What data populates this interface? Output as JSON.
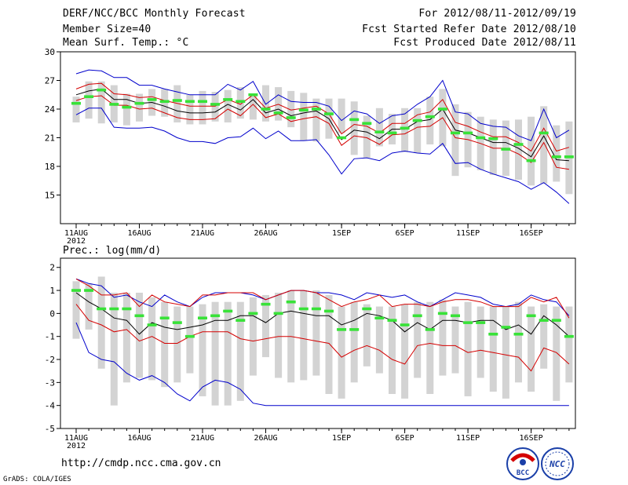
{
  "header": {
    "left": [
      "DERF/NCC/BCC Monthly Forecast",
      "Member Size=40",
      "Mean Surf. Temp.: °C"
    ],
    "right": [
      "For 2012/08/11-2012/09/19",
      "Fcst Started Refer Date 2012/08/10",
      "Fcst Produced Date 2012/08/11"
    ]
  },
  "colors": {
    "box": "#d3d3d3",
    "median": "#38e238",
    "ensemble_mean": "#000000",
    "std_band": "#d40000",
    "extreme": "#0000cc",
    "frame": "#000000"
  },
  "footer": {
    "url": "http://cmdp.ncc.cma.gov.cn",
    "grads": "GrADS: COLA/IGES",
    "logo_left": "BCC",
    "logo_right": "NCC"
  },
  "chart_data": [
    {
      "type": "boxplot",
      "title": "Mean Surf. Temp.: °C",
      "x_tick_labels": [
        "11AUG",
        "16AUG",
        "21AUG",
        "26AUG",
        "1SEP",
        "6SEP",
        "11SEP",
        "16SEP"
      ],
      "x_tick_days": [
        0,
        5,
        10,
        15,
        21,
        26,
        31,
        36
      ],
      "x_year_label": "2012",
      "ylim": [
        12,
        30
      ],
      "y_ticks": [
        15,
        18,
        21,
        24,
        27,
        30
      ],
      "series": [
        {
          "name": "box_high",
          "values": [
            25.3,
            26.9,
            26.9,
            26.5,
            25.6,
            25.6,
            26.1,
            26.1,
            26.5,
            25.5,
            25.9,
            25.8,
            26.0,
            26.3,
            25.5,
            26.5,
            26.3,
            25.9,
            25.7,
            25.1,
            25.1,
            25.1,
            24.8,
            23.3,
            24.1,
            23.5,
            24.1,
            24.1,
            25.3,
            26.1,
            24.5,
            23.7,
            23.2,
            22.9,
            22.8,
            22.9,
            23.2,
            24.3,
            22.3,
            22.7
          ]
        },
        {
          "name": "box_low",
          "values": [
            22.6,
            23.0,
            22.5,
            22.6,
            22.3,
            22.7,
            23.3,
            23.2,
            22.6,
            22.4,
            22.4,
            22.7,
            22.6,
            23.0,
            22.9,
            22.7,
            22.8,
            22.1,
            20.7,
            20.6,
            20.9,
            21.5,
            19.2,
            18.9,
            20.1,
            20.3,
            19.5,
            19.4,
            20.3,
            20.1,
            17.0,
            17.9,
            17.6,
            17.1,
            17.0,
            16.6,
            16.0,
            16.2,
            16.4,
            15.1
          ]
        },
        {
          "name": "median",
          "values": [
            24.6,
            25.3,
            26.0,
            24.5,
            24.2,
            24.6,
            25.0,
            24.8,
            24.9,
            24.8,
            24.8,
            24.5,
            25.0,
            24.8,
            25.5,
            24.0,
            23.6,
            23.1,
            23.9,
            24.0,
            23.5,
            21.0,
            22.9,
            22.5,
            21.6,
            21.5,
            22.0,
            22.8,
            23.2,
            24.0,
            21.5,
            21.5,
            21.0,
            20.9,
            19.8,
            20.3,
            18.6,
            21.5,
            19.0,
            19.0
          ]
        },
        {
          "name": "mean",
          "values": [
            25.5,
            25.9,
            26.1,
            25.0,
            25.0,
            24.6,
            24.7,
            24.3,
            23.8,
            23.6,
            23.6,
            23.7,
            24.5,
            23.9,
            25.0,
            23.6,
            24.0,
            23.3,
            23.6,
            23.8,
            23.0,
            20.8,
            21.8,
            21.6,
            20.9,
            21.9,
            21.9,
            22.7,
            22.9,
            24.0,
            21.8,
            21.5,
            21.0,
            20.5,
            20.5,
            19.9,
            19.0,
            21.2,
            18.7,
            18.6
          ]
        },
        {
          "name": "mean_plus_std",
          "values": [
            26.1,
            26.6,
            26.7,
            25.6,
            25.5,
            25.2,
            25.3,
            24.9,
            24.6,
            24.3,
            24.3,
            24.3,
            25.0,
            24.5,
            25.5,
            24.1,
            24.5,
            23.9,
            24.1,
            24.3,
            23.5,
            21.4,
            22.4,
            22.2,
            21.5,
            22.5,
            22.5,
            23.4,
            23.7,
            25.0,
            22.6,
            22.2,
            21.6,
            21.1,
            21.1,
            20.5,
            19.6,
            22.0,
            19.6,
            20.0
          ]
        },
        {
          "name": "mean_minus_std",
          "values": [
            24.9,
            25.3,
            25.4,
            24.4,
            24.4,
            24.0,
            24.1,
            23.6,
            23.1,
            22.9,
            22.9,
            23.0,
            24.0,
            23.3,
            24.5,
            23.1,
            23.5,
            22.7,
            23.0,
            23.2,
            22.5,
            20.2,
            21.2,
            21.0,
            20.3,
            21.3,
            21.4,
            22.1,
            22.2,
            23.1,
            21.0,
            20.8,
            20.4,
            19.9,
            19.9,
            19.3,
            18.4,
            20.5,
            17.9,
            17.7
          ]
        },
        {
          "name": "max",
          "values": [
            27.7,
            28.1,
            28.0,
            27.3,
            27.3,
            26.5,
            26.5,
            26.1,
            25.8,
            25.5,
            25.5,
            25.5,
            26.6,
            26.0,
            26.9,
            24.5,
            25.5,
            24.8,
            24.7,
            24.7,
            24.3,
            22.8,
            23.8,
            23.5,
            22.5,
            23.3,
            23.5,
            24.5,
            25.3,
            27.0,
            23.7,
            23.5,
            22.5,
            22.2,
            22.1,
            21.2,
            20.7,
            24.0,
            21.0,
            21.8
          ]
        },
        {
          "name": "min",
          "values": [
            23.4,
            24.1,
            24.1,
            22.1,
            22.0,
            22.0,
            22.1,
            21.7,
            21.0,
            20.6,
            20.6,
            20.4,
            21.0,
            21.1,
            22.0,
            20.9,
            21.7,
            20.7,
            20.7,
            20.8,
            19.2,
            17.2,
            18.8,
            18.9,
            18.6,
            19.4,
            19.6,
            19.4,
            19.3,
            20.4,
            18.3,
            18.4,
            17.7,
            17.2,
            16.8,
            16.4,
            15.6,
            16.3,
            15.3,
            14.1
          ]
        }
      ]
    },
    {
      "type": "boxplot",
      "title": "Prec.: log(mm/d)",
      "x_tick_labels": [
        "11AUG",
        "16AUG",
        "21AUG",
        "26AUG",
        "1SEP",
        "6SEP",
        "11SEP",
        "16SEP"
      ],
      "x_tick_days": [
        0,
        5,
        10,
        15,
        21,
        26,
        31,
        36
      ],
      "x_year_label": "2012",
      "ylim": [
        -5,
        2.4
      ],
      "y_ticks": [
        -5,
        -4,
        -3,
        -2,
        -1,
        0,
        1,
        2
      ],
      "series": [
        {
          "name": "box_high",
          "values": [
            1.4,
            1.3,
            1.6,
            0.9,
            0.9,
            0.9,
            0.7,
            0.5,
            0.3,
            0.3,
            0.4,
            0.5,
            0.5,
            0.5,
            0.7,
            0.8,
            0.9,
            1.0,
            1.0,
            1.0,
            0.8,
            0.3,
            0.5,
            0.4,
            0.3,
            0.3,
            0.4,
            0.5,
            0.5,
            0.6,
            0.3,
            0.5,
            0.3,
            0.3,
            0.3,
            0.5,
            0.3,
            0.4,
            0.3,
            0.3
          ]
        },
        {
          "name": "box_low",
          "values": [
            -1.1,
            -0.7,
            -2.4,
            -4.0,
            -3.0,
            -2.8,
            -2.9,
            -3.2,
            -3.0,
            -2.6,
            -3.6,
            -4.0,
            -4.0,
            -3.8,
            -2.7,
            -1.9,
            -2.8,
            -3.0,
            -2.9,
            -2.7,
            -3.5,
            -3.7,
            -3.0,
            -2.3,
            -2.6,
            -3.5,
            -3.7,
            -2.8,
            -3.5,
            -2.7,
            -2.6,
            -3.6,
            -2.8,
            -3.4,
            -3.7,
            -3.0,
            -3.4,
            -2.4,
            -3.8,
            -3.0
          ]
        },
        {
          "name": "median",
          "values": [
            1.0,
            1.0,
            0.2,
            0.2,
            0.2,
            -0.1,
            -0.5,
            -0.2,
            -0.4,
            -1.0,
            -0.2,
            -0.1,
            0.1,
            -0.3,
            0.0,
            0.4,
            0.0,
            0.5,
            0.2,
            0.2,
            0.1,
            -0.7,
            -0.7,
            0.2,
            -0.2,
            -0.3,
            -0.5,
            -0.1,
            -0.7,
            0.0,
            -0.1,
            -0.4,
            -0.4,
            -0.9,
            -0.6,
            -0.9,
            -0.1,
            -0.3,
            -0.3,
            -1.0
          ]
        },
        {
          "name": "mean",
          "values": [
            0.9,
            0.5,
            0.2,
            -0.2,
            -0.3,
            -0.9,
            -0.4,
            -0.6,
            -0.7,
            -0.6,
            -0.5,
            -0.3,
            -0.3,
            -0.1,
            -0.1,
            -0.4,
            0.0,
            0.1,
            0.0,
            -0.1,
            -0.1,
            -0.5,
            -0.3,
            0.0,
            -0.1,
            -0.3,
            -0.8,
            -0.4,
            -0.7,
            -0.3,
            -0.3,
            -0.4,
            -0.3,
            -0.3,
            -0.7,
            -0.5,
            -0.9,
            -0.1,
            -0.5,
            -1.0
          ]
        },
        {
          "name": "mean_plus_std",
          "values": [
            1.5,
            1.2,
            0.8,
            0.8,
            0.9,
            0.3,
            0.8,
            0.5,
            0.4,
            0.3,
            0.8,
            0.8,
            0.9,
            0.9,
            0.9,
            0.6,
            0.8,
            1.0,
            1.0,
            0.9,
            0.6,
            0.3,
            0.5,
            0.6,
            0.8,
            0.3,
            0.4,
            0.4,
            0.3,
            0.5,
            0.6,
            0.6,
            0.5,
            0.3,
            0.3,
            0.3,
            0.7,
            0.5,
            0.7,
            -0.2
          ]
        },
        {
          "name": "mean_minus_std",
          "values": [
            0.4,
            -0.3,
            -0.5,
            -0.8,
            -0.7,
            -1.2,
            -1.0,
            -1.3,
            -1.3,
            -1.0,
            -0.8,
            -0.8,
            -0.8,
            -1.1,
            -1.2,
            -1.1,
            -1.0,
            -1.0,
            -1.1,
            -1.2,
            -1.3,
            -1.9,
            -1.6,
            -1.4,
            -1.6,
            -2.0,
            -2.2,
            -1.4,
            -1.3,
            -1.4,
            -1.4,
            -1.7,
            -1.6,
            -1.7,
            -1.8,
            -1.9,
            -2.5,
            -1.5,
            -1.7,
            -2.2
          ]
        },
        {
          "name": "max",
          "values": [
            1.5,
            1.3,
            1.2,
            0.7,
            0.8,
            0.5,
            0.3,
            0.8,
            0.5,
            0.3,
            0.7,
            0.9,
            0.9,
            0.9,
            0.8,
            0.6,
            0.8,
            1.0,
            1.0,
            0.9,
            0.9,
            0.8,
            0.6,
            0.9,
            0.8,
            0.7,
            0.8,
            0.5,
            0.3,
            0.6,
            0.9,
            0.8,
            0.7,
            0.4,
            0.3,
            0.4,
            0.8,
            0.6,
            0.5,
            -0.1
          ]
        },
        {
          "name": "min",
          "values": [
            -0.4,
            -1.7,
            -2.0,
            -2.1,
            -2.6,
            -2.9,
            -2.7,
            -3.0,
            -3.5,
            -3.8,
            -3.2,
            -2.9,
            -3.0,
            -3.3,
            -3.9,
            -4.0,
            -4.0,
            -4.0,
            -4.0,
            -4.0,
            -4.0,
            -4.0,
            -4.0,
            -4.0,
            -4.0,
            -4.0,
            -4.0,
            -4.0,
            -4.0,
            -4.0,
            -4.0,
            -4.0,
            -4.0,
            -4.0,
            -4.0,
            -4.0,
            -4.0,
            -4.0,
            -4.0,
            -4.0
          ]
        }
      ]
    }
  ]
}
